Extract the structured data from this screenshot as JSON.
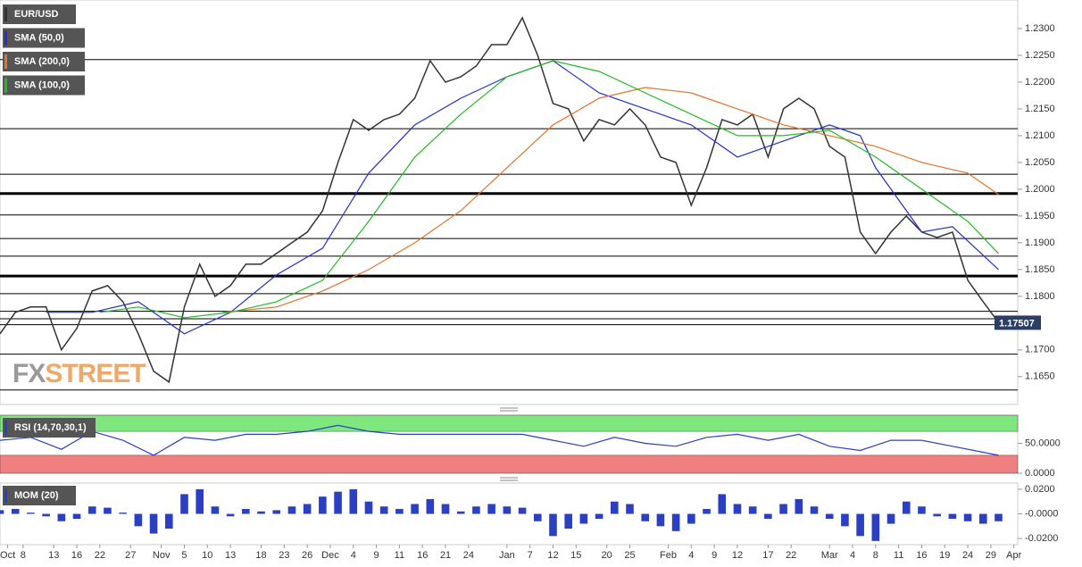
{
  "chart_data": [
    {
      "type": "line",
      "xlim": [
        0,
        132.5
      ],
      "ylim": [
        1.1598,
        1.235
      ],
      "yticks": [
        {
          "value": 1.23,
          "label": "1.2300"
        },
        {
          "value": 1.225,
          "label": "1.2250"
        },
        {
          "value": 1.22,
          "label": "1.2200"
        },
        {
          "value": 1.215,
          "label": "1.2150"
        },
        {
          "value": 1.21,
          "label": "1.2100"
        },
        {
          "value": 1.205,
          "label": "1.2050"
        },
        {
          "value": 1.2,
          "label": "1.2000"
        },
        {
          "value": 1.195,
          "label": "1.1950"
        },
        {
          "value": 1.19,
          "label": "1.1900"
        },
        {
          "value": 1.185,
          "label": "1.1850"
        },
        {
          "value": 1.18,
          "label": "1.1800"
        },
        {
          "value": 1.17,
          "label": "1.1700"
        },
        {
          "value": 1.165,
          "label": "1.1650"
        }
      ],
      "levels": [
        {
          "value": 1.2242,
          "bold": false
        },
        {
          "value": 1.2113,
          "bold": false
        },
        {
          "value": 1.2028,
          "bold": false
        },
        {
          "value": 1.1992,
          "bold": true
        },
        {
          "value": 1.1952,
          "bold": false
        },
        {
          "value": 1.1908,
          "bold": false
        },
        {
          "value": 1.1875,
          "bold": false
        },
        {
          "value": 1.1838,
          "bold": true
        },
        {
          "value": 1.1805,
          "bold": false
        },
        {
          "value": 1.1772,
          "bold": false
        },
        {
          "value": 1.1758,
          "bold": false
        },
        {
          "value": 1.1747,
          "bold": false
        },
        {
          "value": 1.1692,
          "bold": false
        },
        {
          "value": 1.1625,
          "bold": false
        }
      ],
      "last_price": 1.17507,
      "watermark": [
        "FX",
        "STREET"
      ],
      "series": [
        {
          "name": "EUR/USD",
          "color": "#333333",
          "x": [
            0,
            2,
            4,
            6,
            8,
            10,
            12,
            14,
            16,
            18,
            20,
            22,
            24,
            26,
            28,
            30,
            32,
            34,
            36,
            38,
            40,
            42,
            44,
            46,
            48,
            50,
            52,
            54,
            56,
            58,
            60,
            62,
            64,
            66,
            68,
            70,
            72,
            74,
            76,
            78,
            80,
            82,
            84,
            86,
            88,
            90,
            92,
            94,
            96,
            98,
            100,
            102,
            104,
            106,
            108,
            110,
            112,
            114,
            116,
            118,
            120,
            122,
            124,
            126,
            128,
            130
          ],
          "values": [
            1.173,
            1.177,
            1.178,
            1.178,
            1.17,
            1.174,
            1.181,
            1.182,
            1.179,
            1.173,
            1.166,
            1.164,
            1.178,
            1.186,
            1.18,
            1.182,
            1.186,
            1.186,
            1.188,
            1.19,
            1.192,
            1.196,
            1.205,
            1.213,
            1.211,
            1.213,
            1.214,
            1.217,
            1.224,
            1.22,
            1.221,
            1.223,
            1.227,
            1.227,
            1.232,
            1.225,
            1.216,
            1.215,
            1.209,
            1.213,
            1.212,
            1.215,
            1.212,
            1.206,
            1.205,
            1.197,
            1.204,
            1.213,
            1.212,
            1.214,
            1.206,
            1.215,
            1.217,
            1.215,
            1.208,
            1.206,
            1.192,
            1.188,
            1.192,
            1.195,
            1.192,
            1.191,
            1.192,
            1.183,
            1.179,
            1.1751
          ]
        },
        {
          "name": "SMA (50,0)",
          "color": "#2233cc",
          "x": [
            6,
            12,
            18,
            24,
            30,
            36,
            42,
            48,
            54,
            60,
            66,
            72,
            78,
            84,
            90,
            96,
            102,
            108,
            112,
            114,
            120,
            124,
            130
          ],
          "values": [
            1.177,
            1.177,
            1.179,
            1.173,
            1.177,
            1.184,
            1.189,
            1.203,
            1.212,
            1.217,
            1.221,
            1.224,
            1.218,
            1.215,
            1.212,
            1.206,
            1.209,
            1.212,
            1.21,
            1.204,
            1.192,
            1.193,
            1.185
          ]
        },
        {
          "name": "SMA (200,0)",
          "color": "#e8722a",
          "x": [
            29,
            36,
            42,
            48,
            54,
            60,
            66,
            72,
            78,
            84,
            90,
            96,
            102,
            108,
            114,
            120,
            126,
            130
          ],
          "values": [
            1.177,
            1.178,
            1.181,
            1.185,
            1.19,
            1.196,
            1.204,
            1.212,
            1.217,
            1.219,
            1.218,
            1.215,
            1.212,
            1.21,
            1.208,
            1.205,
            1.203,
            1.199
          ]
        },
        {
          "name": "SMA (100,0)",
          "color": "#22bb22",
          "x": [
            13,
            18,
            24,
            30,
            36,
            42,
            48,
            54,
            60,
            66,
            72,
            78,
            84,
            90,
            96,
            102,
            108,
            114,
            120,
            126,
            130
          ],
          "values": [
            1.177,
            1.178,
            1.176,
            1.177,
            1.179,
            1.183,
            1.194,
            1.206,
            1.214,
            1.221,
            1.224,
            1.222,
            1.218,
            1.214,
            1.21,
            1.21,
            1.211,
            1.206,
            1.2,
            1.194,
            1.188
          ]
        }
      ]
    },
    {
      "type": "line",
      "title": "RSI (14,70,30,1)",
      "xlim": [
        0,
        132.5
      ],
      "ylim": [
        0,
        97
      ],
      "yticks": [
        {
          "value": 50,
          "label": "50.0000"
        },
        {
          "value": 0,
          "label": "0.0000"
        }
      ],
      "upper_band": 70,
      "lower_band": 30,
      "series": [
        {
          "color": "#2b3fc4",
          "x": [
            0,
            4,
            8,
            12,
            16,
            20,
            24,
            28,
            32,
            36,
            40,
            44,
            48,
            52,
            56,
            60,
            64,
            68,
            72,
            76,
            80,
            84,
            88,
            92,
            96,
            100,
            104,
            108,
            112,
            116,
            120,
            124,
            128,
            130
          ],
          "values": [
            55,
            60,
            40,
            70,
            55,
            30,
            60,
            55,
            65,
            65,
            70,
            80,
            70,
            65,
            65,
            65,
            65,
            65,
            55,
            45,
            60,
            50,
            45,
            60,
            65,
            55,
            65,
            45,
            38,
            55,
            55,
            45,
            35,
            30
          ]
        }
      ]
    },
    {
      "type": "bar",
      "title": "MOM (20)",
      "color": "#2b3fc4",
      "xlim": [
        0,
        132.5
      ],
      "ylim": [
        -0.025,
        0.025
      ],
      "yticks": [
        {
          "value": 0.02,
          "label": "0.0200"
        },
        {
          "value": 0,
          "label": "-0.0000"
        },
        {
          "value": -0.02,
          "label": "-0.0200"
        }
      ],
      "x": [
        0,
        2,
        4,
        6,
        8,
        10,
        12,
        14,
        16,
        18,
        20,
        22,
        24,
        26,
        28,
        30,
        32,
        34,
        36,
        38,
        40,
        42,
        44,
        46,
        48,
        50,
        52,
        54,
        56,
        58,
        60,
        62,
        64,
        66,
        68,
        70,
        72,
        74,
        76,
        78,
        80,
        82,
        84,
        86,
        88,
        90,
        92,
        94,
        96,
        98,
        100,
        102,
        104,
        106,
        108,
        110,
        112,
        114,
        116,
        118,
        120,
        122,
        124,
        126,
        128,
        130
      ],
      "values": [
        0.003,
        0.004,
        0.001,
        -0.002,
        -0.006,
        -0.004,
        0.006,
        0.005,
        0.001,
        -0.01,
        -0.016,
        -0.012,
        0.016,
        0.02,
        0.006,
        -0.002,
        0.004,
        0.002,
        0.003,
        0.006,
        0.008,
        0.014,
        0.018,
        0.02,
        0.01,
        0.006,
        0.004,
        0.008,
        0.012,
        0.008,
        0.002,
        0.006,
        0.008,
        0.006,
        0.005,
        -0.006,
        -0.018,
        -0.012,
        -0.008,
        -0.004,
        0.01,
        0.008,
        -0.006,
        -0.01,
        -0.014,
        -0.008,
        0.004,
        0.016,
        0.008,
        0.006,
        -0.004,
        0.008,
        0.012,
        0.006,
        -0.004,
        -0.01,
        -0.018,
        -0.022,
        -0.008,
        0.01,
        0.006,
        -0.002,
        -0.004,
        -0.006,
        -0.008,
        -0.006
      ],
      "xticks": [
        {
          "value": 1,
          "label": "Oct"
        },
        {
          "value": 3,
          "label": "8"
        },
        {
          "value": 7,
          "label": "13"
        },
        {
          "value": 10,
          "label": "16"
        },
        {
          "value": 13,
          "label": "22"
        },
        {
          "value": 17,
          "label": "27"
        },
        {
          "value": 21,
          "label": "Nov"
        },
        {
          "value": 24,
          "label": "5"
        },
        {
          "value": 27,
          "label": "10"
        },
        {
          "value": 30,
          "label": "13"
        },
        {
          "value": 34,
          "label": "18"
        },
        {
          "value": 37,
          "label": "23"
        },
        {
          "value": 40,
          "label": "26"
        },
        {
          "value": 43,
          "label": "Dec"
        },
        {
          "value": 46,
          "label": "4"
        },
        {
          "value": 49,
          "label": "9"
        },
        {
          "value": 52,
          "label": "11"
        },
        {
          "value": 55,
          "label": "16"
        },
        {
          "value": 58,
          "label": "21"
        },
        {
          "value": 61,
          "label": "24"
        },
        {
          "value": 66,
          "label": "Jan"
        },
        {
          "value": 69,
          "label": "7"
        },
        {
          "value": 72,
          "label": "12"
        },
        {
          "value": 75,
          "label": "15"
        },
        {
          "value": 79,
          "label": "20"
        },
        {
          "value": 82,
          "label": "25"
        },
        {
          "value": 87,
          "label": "Feb"
        },
        {
          "value": 90,
          "label": "4"
        },
        {
          "value": 93,
          "label": "9"
        },
        {
          "value": 96,
          "label": "12"
        },
        {
          "value": 100,
          "label": "17"
        },
        {
          "value": 103,
          "label": "22"
        },
        {
          "value": 108,
          "label": "Mar"
        },
        {
          "value": 111,
          "label": "4"
        },
        {
          "value": 114,
          "label": "8"
        },
        {
          "value": 117,
          "label": "11"
        },
        {
          "value": 120,
          "label": "16"
        },
        {
          "value": 123,
          "label": "19"
        },
        {
          "value": 126,
          "label": "24"
        },
        {
          "value": 129,
          "label": "29"
        },
        {
          "value": 132,
          "label": "Apr"
        }
      ]
    }
  ]
}
